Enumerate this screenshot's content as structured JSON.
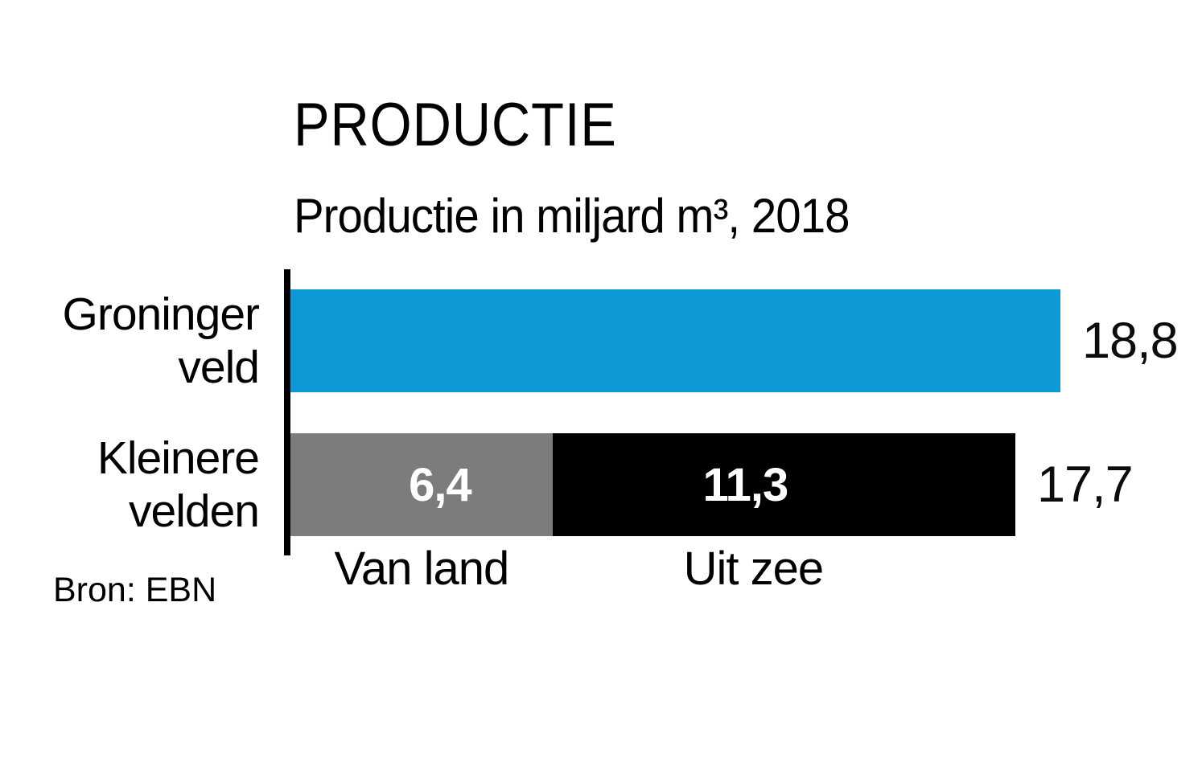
{
  "page": {
    "background": "#ffffff",
    "text_color": "#000000"
  },
  "chart_data": {
    "type": "bar",
    "orientation": "horizontal",
    "title": "PRODUCTIE",
    "subtitle": "Productie in miljard m³, 2018",
    "source": "Bron: EBN",
    "unit": "miljard m³",
    "year": "2018",
    "xlim": [
      0,
      18.8
    ],
    "grid": false,
    "axis": {
      "baseline_visible": true,
      "baseline_color": "#000000"
    },
    "categories": [
      "Groninger veld",
      "Kleinere velden"
    ],
    "rows": [
      {
        "category": "Groninger veld",
        "category_lines": [
          "Groninger",
          "veld"
        ],
        "total": 18.8,
        "total_label": "18,8",
        "segments": [
          {
            "name": "",
            "value": 18.8,
            "value_label": "",
            "color": "#0d98d6",
            "text_color": "#ffffff"
          }
        ]
      },
      {
        "category": "Kleinere velden",
        "category_lines": [
          "Kleinere",
          "velden"
        ],
        "total": 17.7,
        "total_label": "17,7",
        "segments": [
          {
            "name": "Van land",
            "value": 6.4,
            "value_label": "6,4",
            "color": "#7c7c7e",
            "text_color": "#ffffff"
          },
          {
            "name": "Uit zee",
            "value": 11.3,
            "value_label": "11,3",
            "color": "#000000",
            "text_color": "#ffffff"
          }
        ]
      }
    ],
    "colors": {
      "groninger_veld": "#0d98d6",
      "van_land": "#7c7c7e",
      "uit_zee": "#000000"
    }
  }
}
